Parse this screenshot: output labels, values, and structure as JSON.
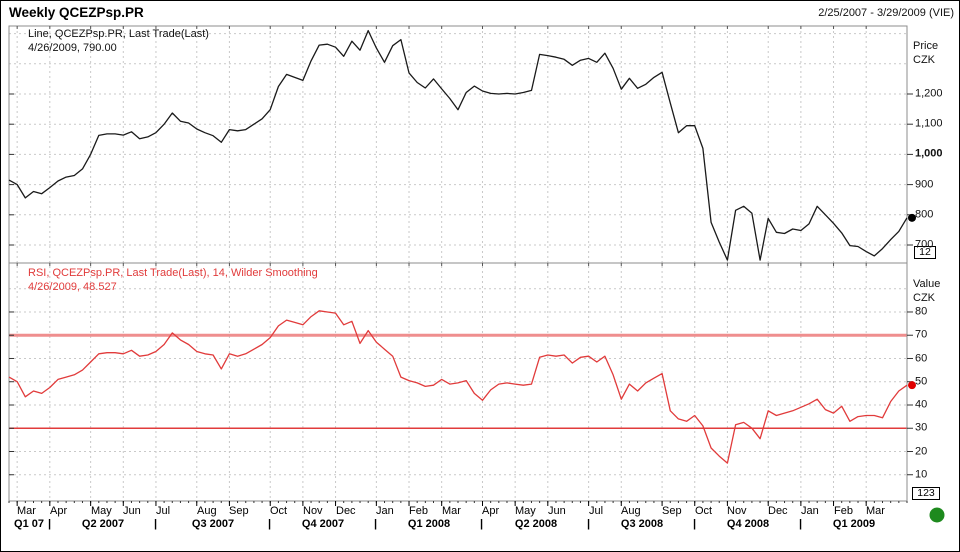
{
  "header": {
    "title": "Weekly QCEZPsp.PR",
    "date_range": "2/25/2007 - 3/29/2009 (VIE)"
  },
  "price_pane": {
    "legend_line1": "Line, QCEZPsp.PR, Last Trade(Last)",
    "legend_line2": "4/26/2009, 790.00",
    "axis_title_line1": "Price",
    "axis_title_line2": "CZK",
    "tick_labels": [
      "1,200",
      "1,100",
      "1,000",
      "900",
      "800",
      "700"
    ],
    "tick_values": [
      1200,
      1100,
      1000,
      900,
      800,
      700
    ],
    "bold_tick": "1,000",
    "pane_id": "12",
    "last_value": 790.0
  },
  "rsi_pane": {
    "legend_line1": "RSI, QCEZPsp.PR, Last Trade(Last),  14, Wilder Smoothing",
    "legend_line2": "4/26/2009, 48.527",
    "axis_title_line1": "Value",
    "axis_title_line2": "CZK",
    "tick_labels": [
      "80",
      "70",
      "60",
      "50",
      "40",
      "30",
      "20",
      "10"
    ],
    "tick_values": [
      80,
      70,
      60,
      50,
      40,
      30,
      20,
      10
    ],
    "pane_id": "123",
    "last_value": 48.527,
    "overbought_level": 70,
    "oversold_level": 30
  },
  "x_axis": {
    "months": [
      {
        "label": "Mar",
        "week": 1
      },
      {
        "label": "Apr",
        "week": 5
      },
      {
        "label": "May",
        "week": 10
      },
      {
        "label": "Jun",
        "week": 14
      },
      {
        "label": "Jul",
        "week": 18
      },
      {
        "label": "Aug",
        "week": 23
      },
      {
        "label": "Sep",
        "week": 27
      },
      {
        "label": "Oct",
        "week": 32
      },
      {
        "label": "Nov",
        "week": 36
      },
      {
        "label": "Dec",
        "week": 40
      },
      {
        "label": "Jan",
        "week": 45
      },
      {
        "label": "Feb",
        "week": 49
      },
      {
        "label": "Mar",
        "week": 53
      },
      {
        "label": "Apr",
        "week": 58
      },
      {
        "label": "May",
        "week": 62
      },
      {
        "label": "Jun",
        "week": 66
      },
      {
        "label": "Jul",
        "week": 71
      },
      {
        "label": "Aug",
        "week": 75
      },
      {
        "label": "Sep",
        "week": 80
      },
      {
        "label": "Oct",
        "week": 84
      },
      {
        "label": "Nov",
        "week": 88
      },
      {
        "label": "Dec",
        "week": 93
      },
      {
        "label": "Jan",
        "week": 97
      },
      {
        "label": "Feb",
        "week": 101
      },
      {
        "label": "Mar",
        "week": 105
      }
    ],
    "quarters": [
      {
        "label": "Q1 07",
        "from": 0,
        "to": 5
      },
      {
        "label": "Q2 2007",
        "from": 5,
        "to": 18
      },
      {
        "label": "Q3 2007",
        "from": 18,
        "to": 32
      },
      {
        "label": "Q4 2007",
        "from": 32,
        "to": 45
      },
      {
        "label": "Q1 2008",
        "from": 45,
        "to": 58
      },
      {
        "label": "Q2 2008",
        "from": 58,
        "to": 71
      },
      {
        "label": "Q3 2008",
        "from": 71,
        "to": 84
      },
      {
        "label": "Q4 2008",
        "from": 84,
        "to": 97
      },
      {
        "label": "Q1 2009",
        "from": 97,
        "to": 110
      }
    ]
  },
  "colors": {
    "price_line": "#1a1a1a",
    "rsi_line": "#e13b3b",
    "overbought_line": "#ef8e8e",
    "oversold_line": "#e13b3b",
    "grid": "#c9c9c9",
    "pane_border": "#8c8c8c",
    "status_dot": "#1e8a1e",
    "last_price_marker": "#000000",
    "last_rsi_marker": "#e10000"
  },
  "chart_data": [
    {
      "type": "line",
      "name": "QCEZPsp.PR Last Trade, weekly close (CZK)",
      "period": "2/25/2007 - 3/29/2009",
      "frequency": "weekly",
      "ylim": [
        650,
        1425
      ],
      "y_ticks": [
        700,
        800,
        900,
        1000,
        1100,
        1200
      ],
      "grid_values": [
        700,
        800,
        900,
        1000,
        1100,
        1200,
        1300,
        1400
      ],
      "last_value": 790.0,
      "values": [
        915,
        900,
        856,
        877,
        870,
        890,
        912,
        925,
        930,
        952,
        1000,
        1063,
        1068,
        1068,
        1064,
        1075,
        1052,
        1058,
        1072,
        1100,
        1137,
        1110,
        1104,
        1084,
        1072,
        1062,
        1040,
        1082,
        1078,
        1082,
        1100,
        1118,
        1148,
        1225,
        1265,
        1255,
        1245,
        1310,
        1362,
        1365,
        1355,
        1325,
        1375,
        1345,
        1410,
        1352,
        1305,
        1360,
        1380,
        1270,
        1238,
        1220,
        1250,
        1217,
        1185,
        1148,
        1205,
        1226,
        1210,
        1202,
        1200,
        1202,
        1200,
        1205,
        1212,
        1331,
        1327,
        1322,
        1315,
        1295,
        1312,
        1318,
        1305,
        1335,
        1285,
        1216,
        1252,
        1219,
        1232,
        1255,
        1272,
        1170,
        1072,
        1095,
        1095,
        1020,
        775,
        710,
        650,
        815,
        828,
        805,
        650,
        788,
        742,
        738,
        753,
        748,
        770,
        828,
        800,
        772,
        740,
        698,
        695,
        678,
        664,
        688,
        718,
        745,
        790
      ]
    },
    {
      "type": "line",
      "name": "RSI, 14, Wilder Smoothing",
      "period": "2/25/2007 - 3/29/2009",
      "frequency": "weekly",
      "ylim": [
        0,
        100
      ],
      "y_ticks": [
        10,
        20,
        30,
        40,
        50,
        60,
        70,
        80
      ],
      "grid_values": [
        10,
        20,
        30,
        40,
        50,
        60,
        70,
        80,
        90
      ],
      "overbought": 70,
      "oversold": 30,
      "last_value": 48.527,
      "values": [
        52,
        50,
        43.5,
        46,
        45,
        47.5,
        51,
        52,
        53,
        55,
        58.5,
        62,
        62.5,
        62.5,
        62,
        63.5,
        61,
        61.5,
        63,
        66,
        71,
        68,
        66,
        63,
        62,
        61.5,
        55.5,
        62,
        61,
        62,
        64,
        66,
        69,
        74,
        76.5,
        75.5,
        74.5,
        78,
        80.5,
        80,
        79.5,
        74.5,
        76,
        66.5,
        72,
        67,
        64,
        61,
        52,
        50.5,
        49.5,
        48,
        48.5,
        51,
        49,
        49.5,
        50.5,
        45,
        42,
        46.5,
        49,
        49.5,
        49,
        48.5,
        49,
        60.5,
        61.5,
        61,
        61.5,
        58,
        60.5,
        61,
        58.5,
        61,
        53,
        42.5,
        49,
        46,
        49.5,
        51.5,
        53.5,
        37.5,
        34,
        33,
        35.5,
        31,
        21.5,
        18,
        15,
        31.5,
        32.5,
        30,
        25.5,
        37.5,
        35.5,
        36.5,
        37.5,
        39,
        40.5,
        42.5,
        38,
        36.5,
        39.5,
        33,
        35,
        35.5,
        35.5,
        34.5,
        41.5,
        46,
        48.5
      ]
    }
  ]
}
